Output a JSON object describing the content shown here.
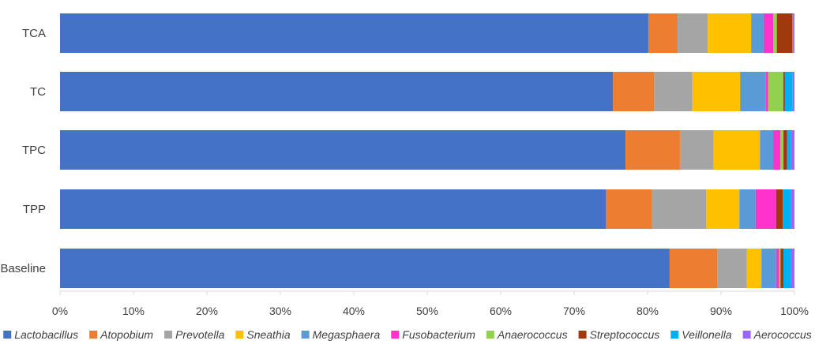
{
  "chart_data": {
    "type": "bar",
    "orientation": "horizontal",
    "stacked": true,
    "percent": true,
    "title": "",
    "xlabel": "",
    "ylabel": "",
    "xlim": [
      0,
      100
    ],
    "x_ticks": [
      "0%",
      "10%",
      "20%",
      "30%",
      "40%",
      "50%",
      "60%",
      "70%",
      "80%",
      "90%",
      "100%"
    ],
    "grid": false,
    "legend_position": "bottom",
    "categories": [
      "TCA",
      "TC",
      "TPC",
      "TPP",
      "Baseline"
    ],
    "series": [
      {
        "name": "Lactobacillus",
        "color": "#4472C4",
        "values": [
          80.1,
          75.3,
          77.0,
          74.3,
          83.0
        ]
      },
      {
        "name": "Atopobium",
        "color": "#ED7D31",
        "values": [
          4.0,
          5.6,
          7.4,
          6.3,
          6.5
        ]
      },
      {
        "name": "Prevotella",
        "color": "#A5A5A5",
        "values": [
          4.1,
          5.2,
          4.6,
          7.4,
          4.0
        ]
      },
      {
        "name": "Sneathia",
        "color": "#FFC000",
        "values": [
          5.9,
          6.5,
          6.3,
          4.5,
          2.0
        ]
      },
      {
        "name": "Megasphaera",
        "color": "#5B9BD5",
        "values": [
          1.7,
          3.5,
          1.8,
          2.2,
          2.0
        ]
      },
      {
        "name": "Fusobacterium",
        "color": "#FF33CC",
        "values": [
          1.3,
          0.3,
          1.0,
          2.8,
          0.4
        ]
      },
      {
        "name": "Anaerococcus",
        "color": "#92D050",
        "values": [
          0.5,
          2.1,
          0.4,
          0.0,
          0.2
        ]
      },
      {
        "name": "Streptococcus",
        "color": "#9E3A0E",
        "values": [
          2.1,
          0.2,
          0.5,
          0.9,
          0.4
        ]
      },
      {
        "name": "Veillonella",
        "color": "#00B0F0",
        "values": [
          0.1,
          1.0,
          0.5,
          1.1,
          1.0
        ]
      },
      {
        "name": "Aerococcus",
        "color": "#9966FF",
        "values": [
          0.2,
          0.3,
          0.5,
          0.5,
          0.5
        ]
      }
    ]
  }
}
